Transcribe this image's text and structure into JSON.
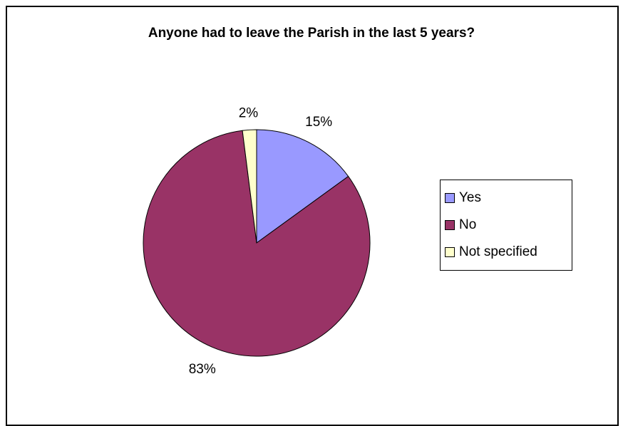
{
  "chart_data": {
    "type": "pie",
    "title": "Anyone had to leave the Parish in the last 5 years?",
    "slices": [
      {
        "label": "Yes",
        "value": 15,
        "display": "15%",
        "color": "#9999ff"
      },
      {
        "label": "No",
        "value": 83,
        "display": "83%",
        "color": "#993366"
      },
      {
        "label": "Not specified",
        "value": 2,
        "display": "2%",
        "color": "#ffffcc"
      }
    ],
    "legend_position": "right"
  }
}
